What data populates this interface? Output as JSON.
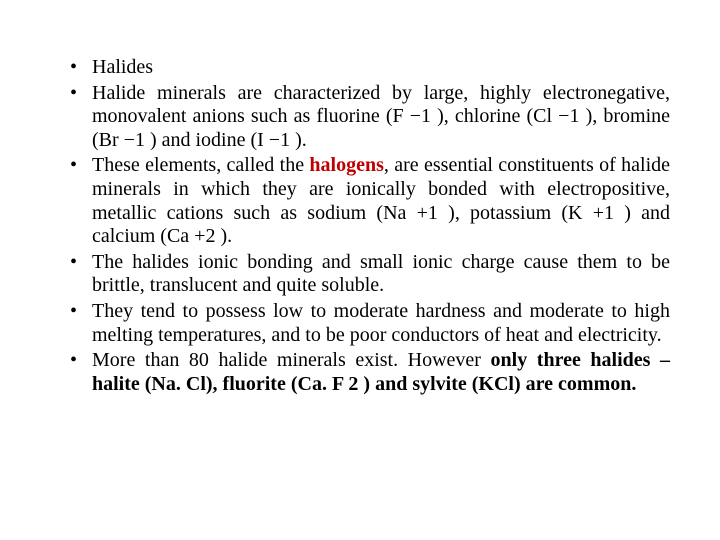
{
  "text_color": "#000000",
  "highlight_color": "#c00000",
  "background_color": "#ffffff",
  "font_family": "Times New Roman",
  "font_size_pt": 20,
  "bullets": {
    "b0": "Halides",
    "b1_pre": "Halide minerals are characterized by large, highly electronegative, monovalent anions such as fluorine (F −1 ), chlorine (Cl −1 ), bromine (Br −1 ) and iodine (I −1 ).",
    "b2_pre": "These elements, called the ",
    "b2_hl": "halogens",
    "b2_post": ", are essential constituents of halide minerals in which they are ionically bonded with electropositive, metallic cations such as sodium (Na +1 ), potassium (K +1 ) and calcium (Ca +2 ).",
    "b3": "The halides ionic bonding and small ionic charge cause them to be brittle, translucent and quite soluble.",
    "b4": "They tend to possess low to moderate hardness and moderate to high melting temperatures, and to be poor conductors of heat and electricity.",
    "b5_pre": "More than 80 halide minerals exist. However ",
    "b5_bold": "only three halides – halite (Na. Cl), fluorite (Ca. F 2 ) and sylvite (KCl) are common",
    "b5_post": "."
  }
}
